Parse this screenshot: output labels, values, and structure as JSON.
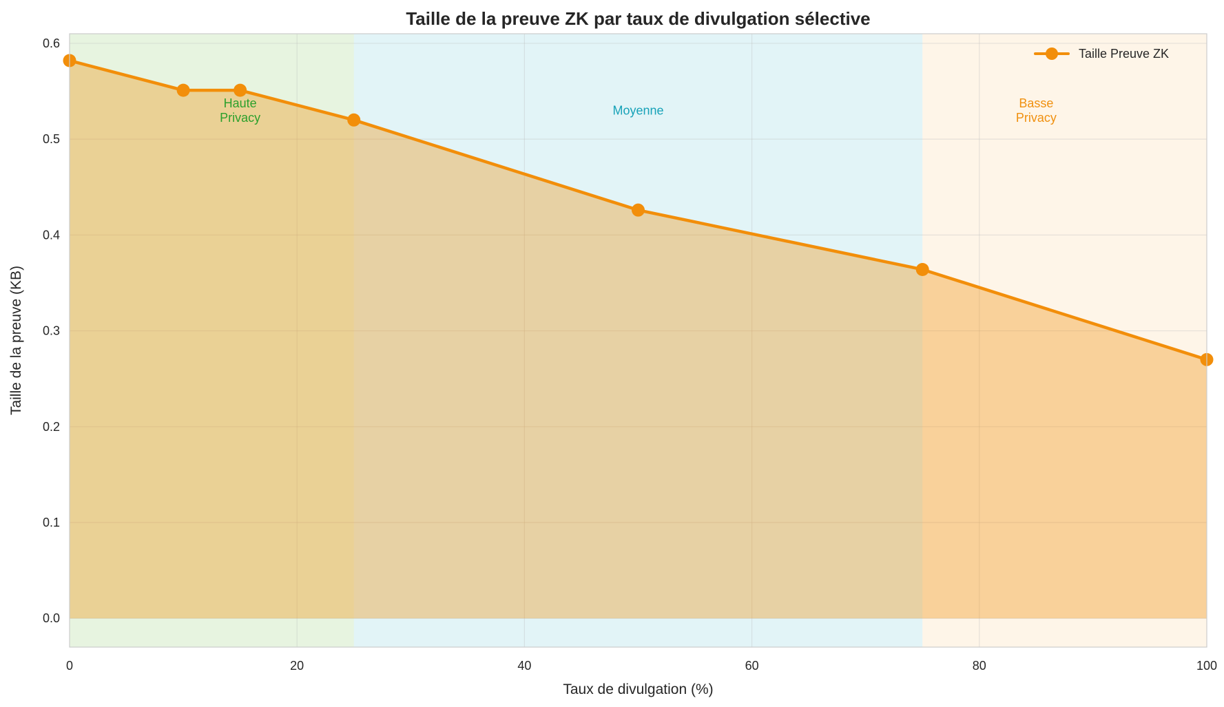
{
  "chart_data": {
    "type": "line",
    "title": "Taille de la preuve ZK par taux de divulgation sélective",
    "xlabel": "Taux de divulgation (%)",
    "ylabel": "Taille de la preuve (KB)",
    "xlim": [
      0,
      100
    ],
    "ylim": [
      -0.03,
      0.61
    ],
    "xticks": [
      0,
      20,
      40,
      60,
      80,
      100
    ],
    "yticks": [
      0.0,
      0.1,
      0.2,
      0.3,
      0.4,
      0.5,
      0.6
    ],
    "xtick_labels": [
      "0",
      "20",
      "40",
      "60",
      "80",
      "100"
    ],
    "ytick_labels": [
      "0.0",
      "0.1",
      "0.2",
      "0.3",
      "0.4",
      "0.5",
      "0.6"
    ],
    "grid": true,
    "legend_position": "top-right",
    "series": [
      {
        "name": "Taille Preuve ZK",
        "color": "#f28e0a",
        "x": [
          0,
          10,
          15,
          25,
          50,
          75,
          100
        ],
        "y": [
          0.582,
          0.551,
          0.551,
          0.52,
          0.426,
          0.364,
          0.27
        ],
        "fill_under": true
      }
    ],
    "regions": [
      {
        "x0": 0,
        "x1": 25,
        "color": "#b3dca0",
        "label_lines": [
          "Haute",
          "Privacy"
        ],
        "label_x": 15,
        "label_color": "#2ca02c"
      },
      {
        "x0": 25,
        "x1": 75,
        "color": "#a6dce6",
        "label_lines": [
          "Moyenne"
        ],
        "label_x": 50,
        "label_color": "#17a2b8"
      },
      {
        "x0": 75,
        "x1": 100,
        "color": "#fbe0b9",
        "label_lines": [
          "Basse",
          "Privacy"
        ],
        "label_x": 85,
        "label_color": "#f0900f"
      }
    ],
    "region_label_y": 0.53
  }
}
